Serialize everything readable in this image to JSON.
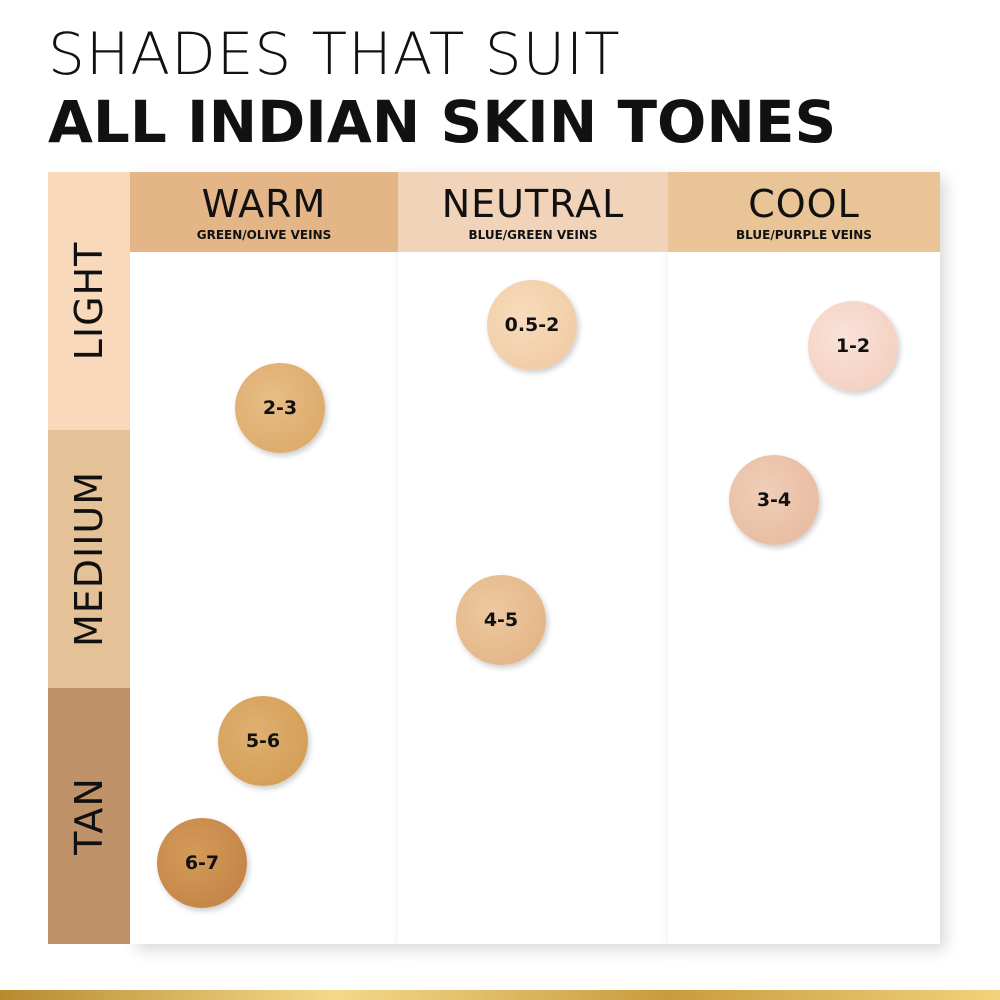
{
  "header": {
    "line1": "SHADES THAT SUIT",
    "line2": "ALL INDIAN SKIN TONES"
  },
  "columns": [
    {
      "name": "WARM",
      "veins": "GREEN/OLIVE VEINS"
    },
    {
      "name": "NEUTRAL",
      "veins": "BLUE/GREEN VEINS"
    },
    {
      "name": "COOL",
      "veins": "BLUE/PURPLE VEINS"
    }
  ],
  "rows": [
    "LIGHT",
    "MEDIIUM",
    "TAN"
  ],
  "shades": [
    "2-3",
    "0.5-2",
    "1-2",
    "3-4",
    "4-5",
    "5-6",
    "6-7"
  ]
}
